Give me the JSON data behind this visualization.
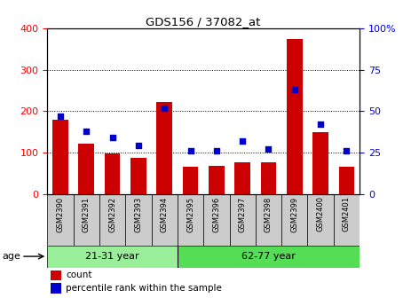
{
  "title": "GDS156 / 37082_at",
  "samples": [
    "GSM2390",
    "GSM2391",
    "GSM2392",
    "GSM2393",
    "GSM2394",
    "GSM2395",
    "GSM2396",
    "GSM2397",
    "GSM2398",
    "GSM2399",
    "GSM2400",
    "GSM2401"
  ],
  "counts": [
    180,
    122,
    97,
    87,
    222,
    65,
    68,
    77,
    77,
    375,
    150,
    65
  ],
  "percentiles": [
    47,
    38,
    34,
    29,
    52,
    26,
    26,
    32,
    27,
    63,
    42,
    26
  ],
  "groups": [
    {
      "label": "21-31 year",
      "start": 0,
      "end": 5,
      "color": "#99ee99"
    },
    {
      "label": "62-77 year",
      "start": 5,
      "end": 12,
      "color": "#55dd55"
    }
  ],
  "bar_color": "#cc0000",
  "dot_color": "#0000cc",
  "ylim_left": [
    0,
    400
  ],
  "ylim_right": [
    0,
    100
  ],
  "yticks_left": [
    0,
    100,
    200,
    300,
    400
  ],
  "yticks_right": [
    0,
    25,
    50,
    75,
    100
  ],
  "sample_box_color": "#cccccc",
  "background_color": "#ffffff",
  "age_label": "age",
  "legend_count": "count",
  "legend_pct": "percentile rank within the sample"
}
